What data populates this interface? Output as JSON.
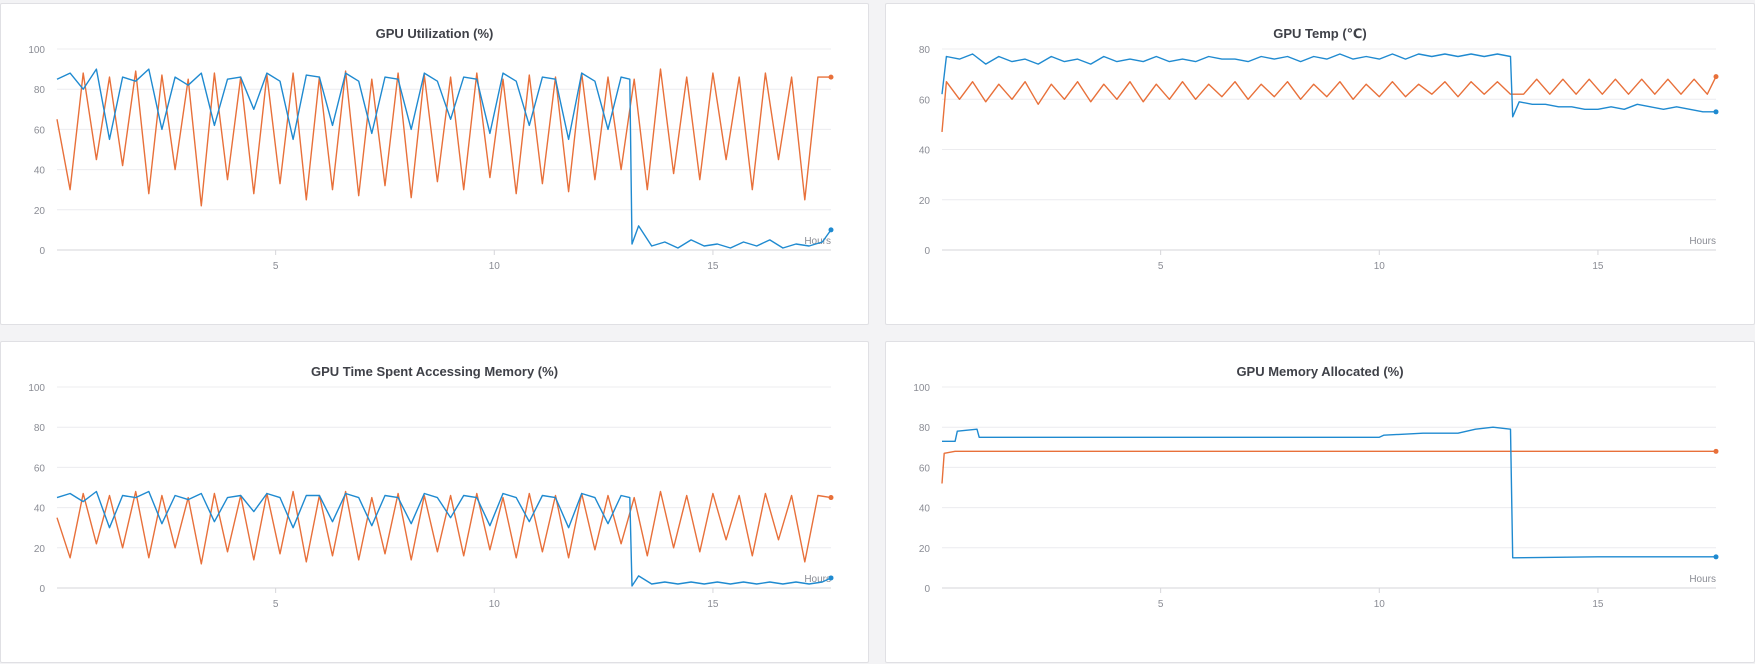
{
  "chart_data": [
    {
      "type": "line",
      "title": "GPU Utilization (%)",
      "xlabel": "Hours",
      "ylabel": "",
      "xlim": [
        0,
        17.7
      ],
      "ylim": [
        0,
        100
      ],
      "xticks": [
        "5",
        "10",
        "15"
      ],
      "yticks": [
        "0",
        "20",
        "40",
        "60",
        "80",
        "100"
      ],
      "grid": true,
      "legend": "none",
      "series": [
        {
          "color": "#e8703a",
          "x": [
            0,
            0.3,
            0.6,
            0.9,
            1.2,
            1.5,
            1.8,
            2.1,
            2.4,
            2.7,
            3.0,
            3.3,
            3.6,
            3.9,
            4.2,
            4.5,
            4.8,
            5.1,
            5.4,
            5.7,
            6.0,
            6.3,
            6.6,
            6.9,
            7.2,
            7.5,
            7.8,
            8.1,
            8.4,
            8.7,
            9.0,
            9.3,
            9.6,
            9.9,
            10.2,
            10.5,
            10.8,
            11.1,
            11.4,
            11.7,
            12.0,
            12.3,
            12.6,
            12.9,
            13.2,
            13.5,
            13.8,
            14.1,
            14.4,
            14.7,
            15.0,
            15.3,
            15.6,
            15.9,
            16.2,
            16.5,
            16.8,
            17.1,
            17.4,
            17.7
          ],
          "values": [
            65,
            30,
            88,
            45,
            86,
            42,
            89,
            28,
            87,
            40,
            85,
            22,
            88,
            35,
            86,
            28,
            87,
            33,
            88,
            25,
            86,
            30,
            89,
            27,
            85,
            32,
            88,
            26,
            87,
            34,
            86,
            30,
            88,
            36,
            85,
            28,
            87,
            33,
            86,
            29,
            88,
            35,
            86,
            40,
            85,
            30,
            90,
            38,
            86,
            35,
            88,
            45,
            86,
            30,
            88,
            45,
            86,
            25,
            86,
            86
          ]
        },
        {
          "color": "#1f8ad0",
          "x": [
            0,
            0.3,
            0.6,
            0.9,
            1.2,
            1.5,
            1.8,
            2.1,
            2.4,
            2.7,
            3.0,
            3.3,
            3.6,
            3.9,
            4.2,
            4.5,
            4.8,
            5.1,
            5.4,
            5.7,
            6.0,
            6.3,
            6.6,
            6.9,
            7.2,
            7.5,
            7.8,
            8.1,
            8.4,
            8.7,
            9.0,
            9.3,
            9.6,
            9.9,
            10.2,
            10.5,
            10.8,
            11.1,
            11.4,
            11.7,
            12.0,
            12.3,
            12.6,
            12.9,
            13.1,
            13.15,
            13.3,
            13.6,
            13.9,
            14.2,
            14.5,
            14.8,
            15.1,
            15.4,
            15.7,
            16.0,
            16.3,
            16.6,
            16.9,
            17.2,
            17.5,
            17.7
          ],
          "values": [
            85,
            88,
            80,
            90,
            55,
            86,
            84,
            90,
            60,
            86,
            82,
            88,
            62,
            85,
            86,
            70,
            88,
            84,
            55,
            87,
            86,
            62,
            88,
            84,
            58,
            86,
            85,
            60,
            88,
            84,
            65,
            86,
            85,
            58,
            88,
            84,
            62,
            86,
            85,
            55,
            88,
            84,
            60,
            86,
            85,
            3,
            12,
            2,
            4,
            1,
            5,
            2,
            3,
            1,
            4,
            2,
            5,
            1,
            3,
            2,
            4,
            10
          ]
        }
      ]
    },
    {
      "type": "line",
      "title": "GPU Temp (℃)",
      "xlabel": "Hours",
      "ylabel": "",
      "xlim": [
        0,
        17.7
      ],
      "ylim": [
        0,
        80
      ],
      "xticks": [
        "5",
        "10",
        "15"
      ],
      "yticks": [
        "0",
        "20",
        "40",
        "60",
        "80"
      ],
      "grid": true,
      "legend": "none",
      "series": [
        {
          "color": "#e8703a",
          "x": [
            0,
            0.1,
            0.4,
            0.7,
            1.0,
            1.3,
            1.6,
            1.9,
            2.2,
            2.5,
            2.8,
            3.1,
            3.4,
            3.7,
            4.0,
            4.3,
            4.6,
            4.9,
            5.2,
            5.5,
            5.8,
            6.1,
            6.4,
            6.7,
            7.0,
            7.3,
            7.6,
            7.9,
            8.2,
            8.5,
            8.8,
            9.1,
            9.4,
            9.7,
            10.0,
            10.3,
            10.6,
            10.9,
            11.2,
            11.5,
            11.8,
            12.1,
            12.4,
            12.7,
            13.0,
            13.3,
            13.6,
            13.9,
            14.2,
            14.5,
            14.8,
            15.1,
            15.4,
            15.7,
            16.0,
            16.3,
            16.6,
            16.9,
            17.2,
            17.5,
            17.7
          ],
          "values": [
            47,
            67,
            60,
            67,
            59,
            66,
            60,
            67,
            58,
            66,
            60,
            67,
            59,
            66,
            60,
            67,
            59,
            66,
            60,
            67,
            60,
            66,
            61,
            67,
            60,
            66,
            61,
            67,
            60,
            66,
            61,
            67,
            60,
            66,
            61,
            67,
            61,
            66,
            62,
            67,
            61,
            67,
            62,
            67,
            62,
            62,
            68,
            62,
            68,
            62,
            68,
            62,
            68,
            62,
            68,
            62,
            68,
            62,
            68,
            62,
            69
          ]
        },
        {
          "color": "#1f8ad0",
          "x": [
            0,
            0.1,
            0.4,
            0.7,
            1.0,
            1.3,
            1.6,
            1.9,
            2.2,
            2.5,
            2.8,
            3.1,
            3.4,
            3.7,
            4.0,
            4.3,
            4.6,
            4.9,
            5.2,
            5.5,
            5.8,
            6.1,
            6.4,
            6.7,
            7.0,
            7.3,
            7.6,
            7.9,
            8.2,
            8.5,
            8.8,
            9.1,
            9.4,
            9.7,
            10.0,
            10.3,
            10.6,
            10.9,
            11.2,
            11.5,
            11.8,
            12.1,
            12.4,
            12.7,
            13.0,
            13.05,
            13.2,
            13.5,
            13.8,
            14.1,
            14.4,
            14.7,
            15.0,
            15.3,
            15.6,
            15.9,
            16.2,
            16.5,
            16.8,
            17.1,
            17.4,
            17.7
          ],
          "values": [
            62,
            77,
            76,
            78,
            74,
            77,
            75,
            76,
            74,
            77,
            75,
            76,
            74,
            77,
            75,
            76,
            75,
            77,
            75,
            76,
            75,
            77,
            76,
            76,
            75,
            77,
            76,
            77,
            75,
            77,
            76,
            78,
            76,
            77,
            76,
            78,
            76,
            78,
            77,
            78,
            77,
            78,
            77,
            78,
            77,
            53,
            59,
            58,
            58,
            57,
            57,
            56,
            56,
            57,
            56,
            58,
            57,
            56,
            57,
            56,
            55,
            55
          ]
        }
      ]
    },
    {
      "type": "line",
      "title": "GPU Time Spent Accessing Memory (%)",
      "xlabel": "Hours",
      "ylabel": "",
      "xlim": [
        0,
        17.7
      ],
      "ylim": [
        0,
        100
      ],
      "xticks": [
        "5",
        "10",
        "15"
      ],
      "yticks": [
        "0",
        "20",
        "40",
        "60",
        "80",
        "100"
      ],
      "grid": true,
      "legend": "none",
      "series": [
        {
          "color": "#e8703a",
          "x": [
            0,
            0.3,
            0.6,
            0.9,
            1.2,
            1.5,
            1.8,
            2.1,
            2.4,
            2.7,
            3.0,
            3.3,
            3.6,
            3.9,
            4.2,
            4.5,
            4.8,
            5.1,
            5.4,
            5.7,
            6.0,
            6.3,
            6.6,
            6.9,
            7.2,
            7.5,
            7.8,
            8.1,
            8.4,
            8.7,
            9.0,
            9.3,
            9.6,
            9.9,
            10.2,
            10.5,
            10.8,
            11.1,
            11.4,
            11.7,
            12.0,
            12.3,
            12.6,
            12.9,
            13.2,
            13.5,
            13.8,
            14.1,
            14.4,
            14.7,
            15.0,
            15.3,
            15.6,
            15.9,
            16.2,
            16.5,
            16.8,
            17.1,
            17.4,
            17.7
          ],
          "values": [
            35,
            15,
            47,
            22,
            46,
            20,
            48,
            15,
            46,
            20,
            45,
            12,
            47,
            18,
            46,
            14,
            47,
            17,
            48,
            13,
            46,
            16,
            48,
            14,
            45,
            17,
            47,
            14,
            46,
            18,
            46,
            16,
            47,
            19,
            45,
            15,
            47,
            18,
            46,
            15,
            47,
            19,
            46,
            22,
            45,
            16,
            48,
            20,
            46,
            18,
            47,
            24,
            46,
            16,
            47,
            24,
            46,
            13,
            46,
            45
          ]
        },
        {
          "color": "#1f8ad0",
          "x": [
            0,
            0.3,
            0.6,
            0.9,
            1.2,
            1.5,
            1.8,
            2.1,
            2.4,
            2.7,
            3.0,
            3.3,
            3.6,
            3.9,
            4.2,
            4.5,
            4.8,
            5.1,
            5.4,
            5.7,
            6.0,
            6.3,
            6.6,
            6.9,
            7.2,
            7.5,
            7.8,
            8.1,
            8.4,
            8.7,
            9.0,
            9.3,
            9.6,
            9.9,
            10.2,
            10.5,
            10.8,
            11.1,
            11.4,
            11.7,
            12.0,
            12.3,
            12.6,
            12.9,
            13.1,
            13.15,
            13.3,
            13.6,
            13.9,
            14.2,
            14.5,
            14.8,
            15.1,
            15.4,
            15.7,
            16.0,
            16.3,
            16.6,
            16.9,
            17.2,
            17.5,
            17.7
          ],
          "values": [
            45,
            47,
            43,
            48,
            30,
            46,
            45,
            48,
            32,
            46,
            44,
            47,
            33,
            45,
            46,
            38,
            47,
            45,
            30,
            46,
            46,
            33,
            47,
            45,
            31,
            46,
            45,
            32,
            47,
            45,
            35,
            46,
            45,
            31,
            47,
            45,
            33,
            46,
            45,
            30,
            47,
            45,
            32,
            46,
            45,
            1,
            6,
            2,
            3,
            2,
            3,
            2,
            3,
            2,
            3,
            2,
            3,
            2,
            3,
            2,
            3,
            5
          ]
        }
      ]
    },
    {
      "type": "line",
      "title": "GPU Memory Allocated (%)",
      "xlabel": "Hours",
      "ylabel": "",
      "xlim": [
        0,
        17.7
      ],
      "ylim": [
        0,
        100
      ],
      "xticks": [
        "5",
        "10",
        "15"
      ],
      "yticks": [
        "0",
        "20",
        "40",
        "60",
        "80",
        "100"
      ],
      "grid": true,
      "legend": "none",
      "series": [
        {
          "color": "#e8703a",
          "x": [
            0,
            0.05,
            0.3,
            17.7
          ],
          "values": [
            52,
            67,
            68,
            68
          ]
        },
        {
          "color": "#1f8ad0",
          "x": [
            0,
            0.3,
            0.35,
            0.8,
            0.85,
            10.0,
            10.1,
            11.0,
            11.8,
            12.2,
            12.6,
            13.0,
            13.05,
            15.0,
            17.7
          ],
          "values": [
            73,
            73,
            78,
            79,
            75,
            75,
            76,
            77,
            77,
            79,
            80,
            79,
            15,
            15.5,
            15.5
          ]
        }
      ]
    }
  ]
}
